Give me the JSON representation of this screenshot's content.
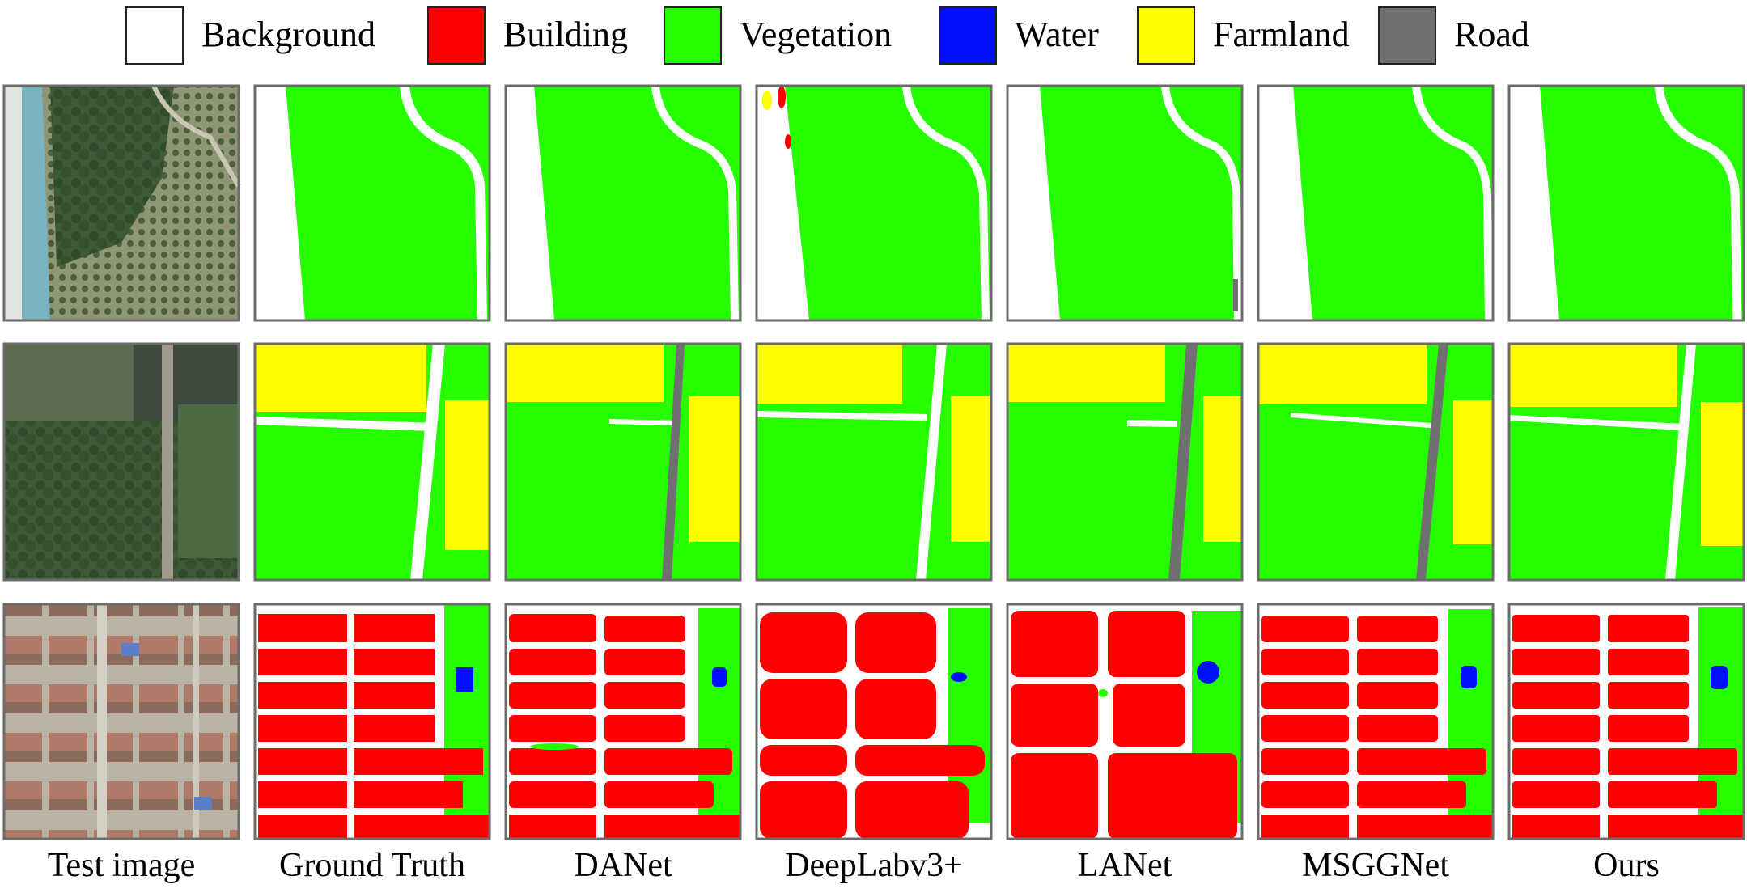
{
  "legend": [
    {
      "label": "Background",
      "color": "#ffffff"
    },
    {
      "label": "Building",
      "color": "#ff0000"
    },
    {
      "label": "Vegetation",
      "color": "#26ff00"
    },
    {
      "label": "Water",
      "color": "#0010ff"
    },
    {
      "label": "Farmland",
      "color": "#ffff00"
    },
    {
      "label": "Road",
      "color": "#707070"
    }
  ],
  "columns": [
    {
      "label": "Test image"
    },
    {
      "label": "Ground Truth"
    },
    {
      "label": "DANet"
    },
    {
      "label": "DeepLabv3+"
    },
    {
      "label": "LANet"
    },
    {
      "label": "MSGGNet"
    },
    {
      "label": "Ours"
    }
  ],
  "rows": [
    {
      "scene": "riverbank-orchard"
    },
    {
      "scene": "farmland-road"
    },
    {
      "scene": "residential-village"
    }
  ]
}
